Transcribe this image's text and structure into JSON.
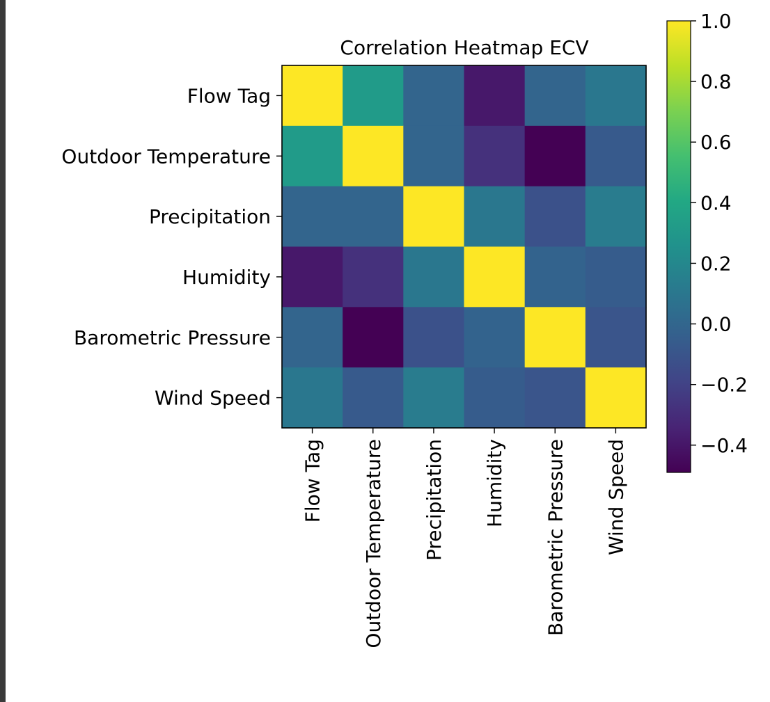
{
  "chart_data": {
    "type": "heatmap",
    "title": "Correlation Heatmap ECV",
    "row_labels": [
      "Flow Tag",
      "Outdoor Temperature",
      "Precipitation",
      "Humidity",
      "Barometric Pressure",
      "Wind Speed"
    ],
    "col_labels": [
      "Flow Tag",
      "Outdoor Temperature",
      "Precipitation",
      "Humidity",
      "Barometric Pressure",
      "Wind Speed"
    ],
    "values": [
      [
        1.0,
        0.32,
        -0.01,
        -0.39,
        -0.01,
        0.1
      ],
      [
        0.32,
        1.0,
        -0.01,
        -0.28,
        -0.49,
        -0.07
      ],
      [
        -0.01,
        -0.01,
        1.0,
        0.1,
        -0.12,
        0.13
      ],
      [
        -0.39,
        -0.28,
        0.1,
        1.0,
        -0.02,
        -0.06
      ],
      [
        -0.01,
        -0.49,
        -0.12,
        -0.02,
        1.0,
        -0.1
      ],
      [
        0.1,
        -0.07,
        0.13,
        -0.06,
        -0.1,
        1.0
      ]
    ],
    "colormap": "viridis",
    "colorbar": {
      "vmin": -0.49,
      "vmax": 1.0,
      "ticks": [
        -0.4,
        -0.2,
        0.0,
        0.2,
        0.4,
        0.6,
        0.8,
        1.0
      ],
      "tick_labels": [
        "−0.4",
        "−0.2",
        "0.0",
        "0.2",
        "0.4",
        "0.6",
        "0.8",
        "1.0"
      ]
    },
    "grid": false,
    "legend": "colorbar-right"
  }
}
